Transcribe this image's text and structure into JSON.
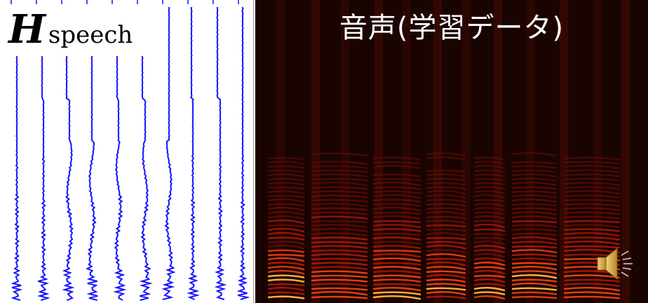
{
  "left_panel": {
    "label_main": "H",
    "label_sub": "speech",
    "line_color": "#1414ff",
    "waveform_count": 10
  },
  "spectrogram": {
    "title": "音声(学習データ)",
    "speaker_icon": "speaker-icon"
  }
}
